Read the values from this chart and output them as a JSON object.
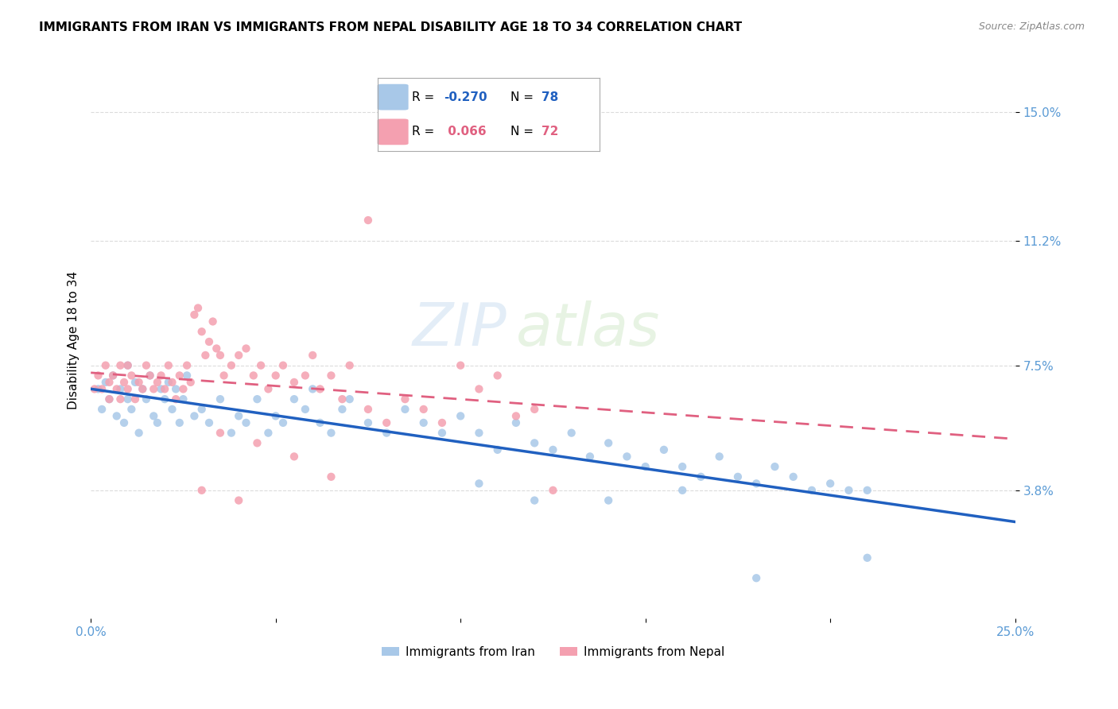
{
  "title": "IMMIGRANTS FROM IRAN VS IMMIGRANTS FROM NEPAL DISABILITY AGE 18 TO 34 CORRELATION CHART",
  "source": "Source: ZipAtlas.com",
  "ylabel": "Disability Age 18 to 34",
  "xlim": [
    0.0,
    0.25
  ],
  "ylim": [
    0.0,
    0.165
  ],
  "xticks": [
    0.0,
    0.05,
    0.1,
    0.15,
    0.2,
    0.25
  ],
  "xticklabels": [
    "0.0%",
    "",
    "",
    "",
    "",
    "25.0%"
  ],
  "ytick_positions": [
    0.038,
    0.075,
    0.112,
    0.15
  ],
  "ytick_labels": [
    "3.8%",
    "7.5%",
    "11.2%",
    "15.0%"
  ],
  "iran_R": -0.27,
  "iran_N": 78,
  "nepal_R": 0.066,
  "nepal_N": 72,
  "iran_color": "#a8c8e8",
  "nepal_color": "#f4a0b0",
  "iran_line_color": "#2060c0",
  "nepal_line_color": "#e06080",
  "watermark": "ZIPatlas",
  "iran_scatter_x": [
    0.002,
    0.003,
    0.004,
    0.005,
    0.006,
    0.007,
    0.008,
    0.009,
    0.01,
    0.01,
    0.011,
    0.012,
    0.013,
    0.014,
    0.015,
    0.016,
    0.017,
    0.018,
    0.019,
    0.02,
    0.021,
    0.022,
    0.023,
    0.024,
    0.025,
    0.026,
    0.028,
    0.03,
    0.032,
    0.035,
    0.038,
    0.04,
    0.042,
    0.045,
    0.048,
    0.05,
    0.052,
    0.055,
    0.058,
    0.06,
    0.062,
    0.065,
    0.068,
    0.07,
    0.075,
    0.08,
    0.085,
    0.09,
    0.095,
    0.1,
    0.105,
    0.11,
    0.115,
    0.12,
    0.125,
    0.13,
    0.135,
    0.14,
    0.145,
    0.15,
    0.155,
    0.16,
    0.165,
    0.17,
    0.175,
    0.18,
    0.185,
    0.19,
    0.195,
    0.2,
    0.205,
    0.21,
    0.105,
    0.12,
    0.14,
    0.16,
    0.18,
    0.21
  ],
  "iran_scatter_y": [
    0.068,
    0.062,
    0.07,
    0.065,
    0.072,
    0.06,
    0.068,
    0.058,
    0.065,
    0.075,
    0.062,
    0.07,
    0.055,
    0.068,
    0.065,
    0.072,
    0.06,
    0.058,
    0.068,
    0.065,
    0.07,
    0.062,
    0.068,
    0.058,
    0.065,
    0.072,
    0.06,
    0.062,
    0.058,
    0.065,
    0.055,
    0.06,
    0.058,
    0.065,
    0.055,
    0.06,
    0.058,
    0.065,
    0.062,
    0.068,
    0.058,
    0.055,
    0.062,
    0.065,
    0.058,
    0.055,
    0.062,
    0.058,
    0.055,
    0.06,
    0.055,
    0.05,
    0.058,
    0.052,
    0.05,
    0.055,
    0.048,
    0.052,
    0.048,
    0.045,
    0.05,
    0.045,
    0.042,
    0.048,
    0.042,
    0.04,
    0.045,
    0.042,
    0.038,
    0.04,
    0.038,
    0.038,
    0.04,
    0.035,
    0.035,
    0.038,
    0.012,
    0.018
  ],
  "nepal_scatter_x": [
    0.001,
    0.002,
    0.003,
    0.004,
    0.005,
    0.005,
    0.006,
    0.007,
    0.008,
    0.008,
    0.009,
    0.01,
    0.01,
    0.011,
    0.012,
    0.013,
    0.014,
    0.015,
    0.016,
    0.017,
    0.018,
    0.019,
    0.02,
    0.021,
    0.022,
    0.023,
    0.024,
    0.025,
    0.026,
    0.027,
    0.028,
    0.029,
    0.03,
    0.031,
    0.032,
    0.033,
    0.034,
    0.035,
    0.036,
    0.038,
    0.04,
    0.042,
    0.044,
    0.046,
    0.048,
    0.05,
    0.052,
    0.055,
    0.058,
    0.06,
    0.062,
    0.065,
    0.068,
    0.07,
    0.075,
    0.08,
    0.085,
    0.09,
    0.095,
    0.1,
    0.105,
    0.11,
    0.115,
    0.12,
    0.125,
    0.035,
    0.045,
    0.055,
    0.065,
    0.075,
    0.03,
    0.04
  ],
  "nepal_scatter_y": [
    0.068,
    0.072,
    0.068,
    0.075,
    0.07,
    0.065,
    0.072,
    0.068,
    0.075,
    0.065,
    0.07,
    0.068,
    0.075,
    0.072,
    0.065,
    0.07,
    0.068,
    0.075,
    0.072,
    0.068,
    0.07,
    0.072,
    0.068,
    0.075,
    0.07,
    0.065,
    0.072,
    0.068,
    0.075,
    0.07,
    0.09,
    0.092,
    0.085,
    0.078,
    0.082,
    0.088,
    0.08,
    0.078,
    0.072,
    0.075,
    0.078,
    0.08,
    0.072,
    0.075,
    0.068,
    0.072,
    0.075,
    0.07,
    0.072,
    0.078,
    0.068,
    0.072,
    0.065,
    0.075,
    0.062,
    0.058,
    0.065,
    0.062,
    0.058,
    0.075,
    0.068,
    0.072,
    0.06,
    0.062,
    0.038,
    0.055,
    0.052,
    0.048,
    0.042,
    0.118,
    0.038,
    0.035
  ],
  "legend_iran_text": "R = -0.270   N = 78",
  "legend_nepal_text": "R =  0.066   N = 72",
  "bottom_legend_iran": "Immigrants from Iran",
  "bottom_legend_nepal": "Immigrants from Nepal"
}
